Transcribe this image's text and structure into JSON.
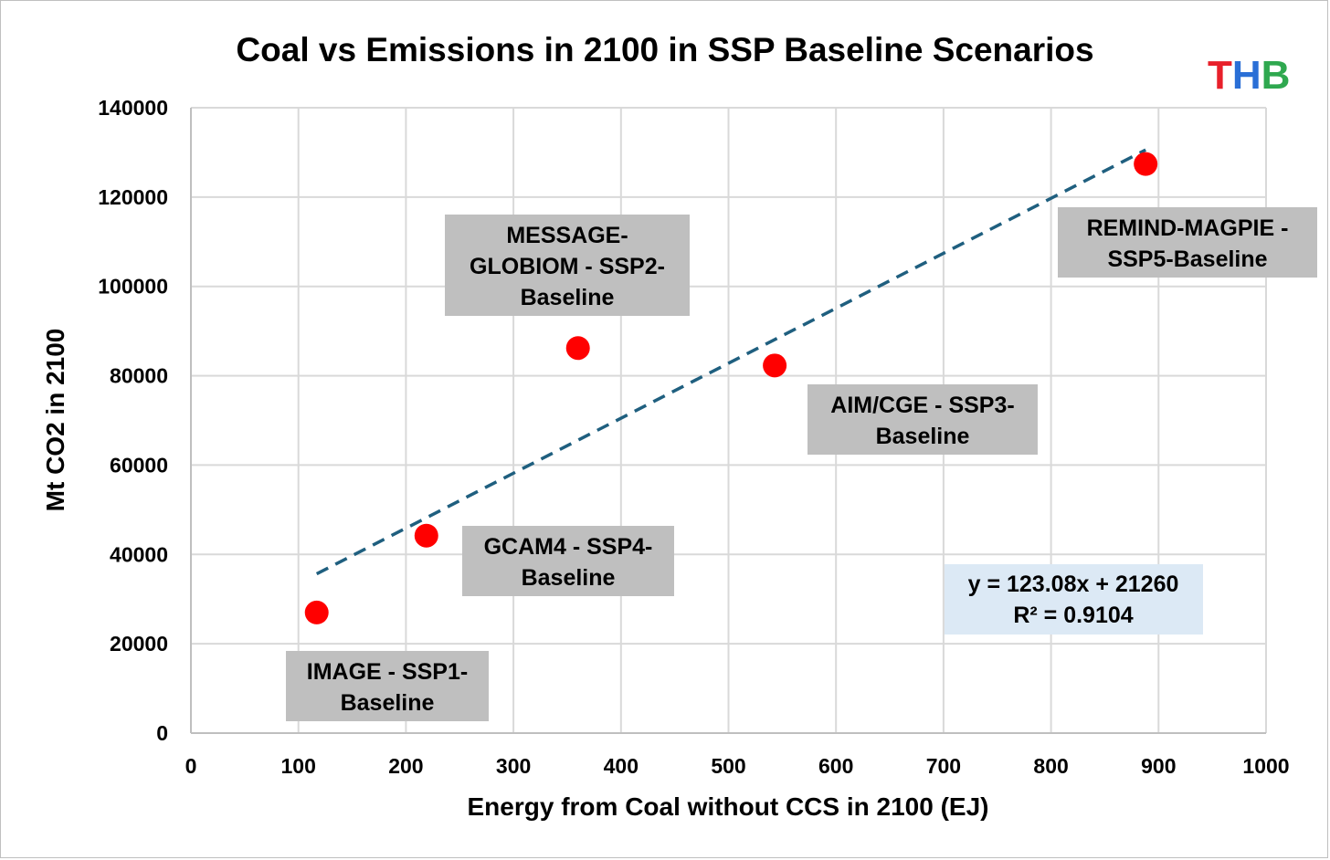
{
  "chart_data": {
    "type": "scatter",
    "title": "Coal vs Emissions in 2100 in SSP Baseline Scenarios",
    "xlabel": "Energy from Coal without CCS in 2100 (EJ)",
    "ylabel": "Mt CO2 in 2100",
    "xlim": [
      0,
      1000
    ],
    "ylim": [
      0,
      140000
    ],
    "xticks": [
      "0",
      "100",
      "200",
      "300",
      "400",
      "500",
      "600",
      "700",
      "800",
      "900",
      "1000"
    ],
    "yticks": [
      "0",
      "20000",
      "40000",
      "60000",
      "80000",
      "100000",
      "120000",
      "140000"
    ],
    "grid": true,
    "points": [
      {
        "label": [
          "IMAGE - SSP1-",
          "Baseline"
        ],
        "x": 117,
        "y": 27000
      },
      {
        "label": [
          "GCAM4 - SSP4-",
          "Baseline"
        ],
        "x": 219,
        "y": 44200
      },
      {
        "label": [
          "MESSAGE-",
          "GLOBIOM - SSP2-",
          "Baseline"
        ],
        "x": 360,
        "y": 86200
      },
      {
        "label": [
          "AIM/CGE - SSP3-",
          "Baseline"
        ],
        "x": 543,
        "y": 82300
      },
      {
        "label": [
          "REMIND-MAGPIE -",
          "SSP5-Baseline"
        ],
        "x": 888,
        "y": 127400
      }
    ],
    "trendline": {
      "slope": 123.08,
      "intercept": 21260,
      "x_from": 117,
      "x_to": 888
    },
    "equation": [
      "y = 123.08x + 21260",
      "R² = 0.9104"
    ],
    "colors": {
      "point": "#ff0000",
      "trend": "#1f5f7f",
      "grid": "#d9d9d9",
      "axis": "#bfbfbf",
      "label_bg": "#bfbfbf",
      "equation_bg": "#dce9f5"
    }
  },
  "logo": {
    "letters": [
      "T",
      "H",
      "B"
    ],
    "colors": [
      "#e8202a",
      "#2a6fd6",
      "#2fa84f"
    ]
  }
}
